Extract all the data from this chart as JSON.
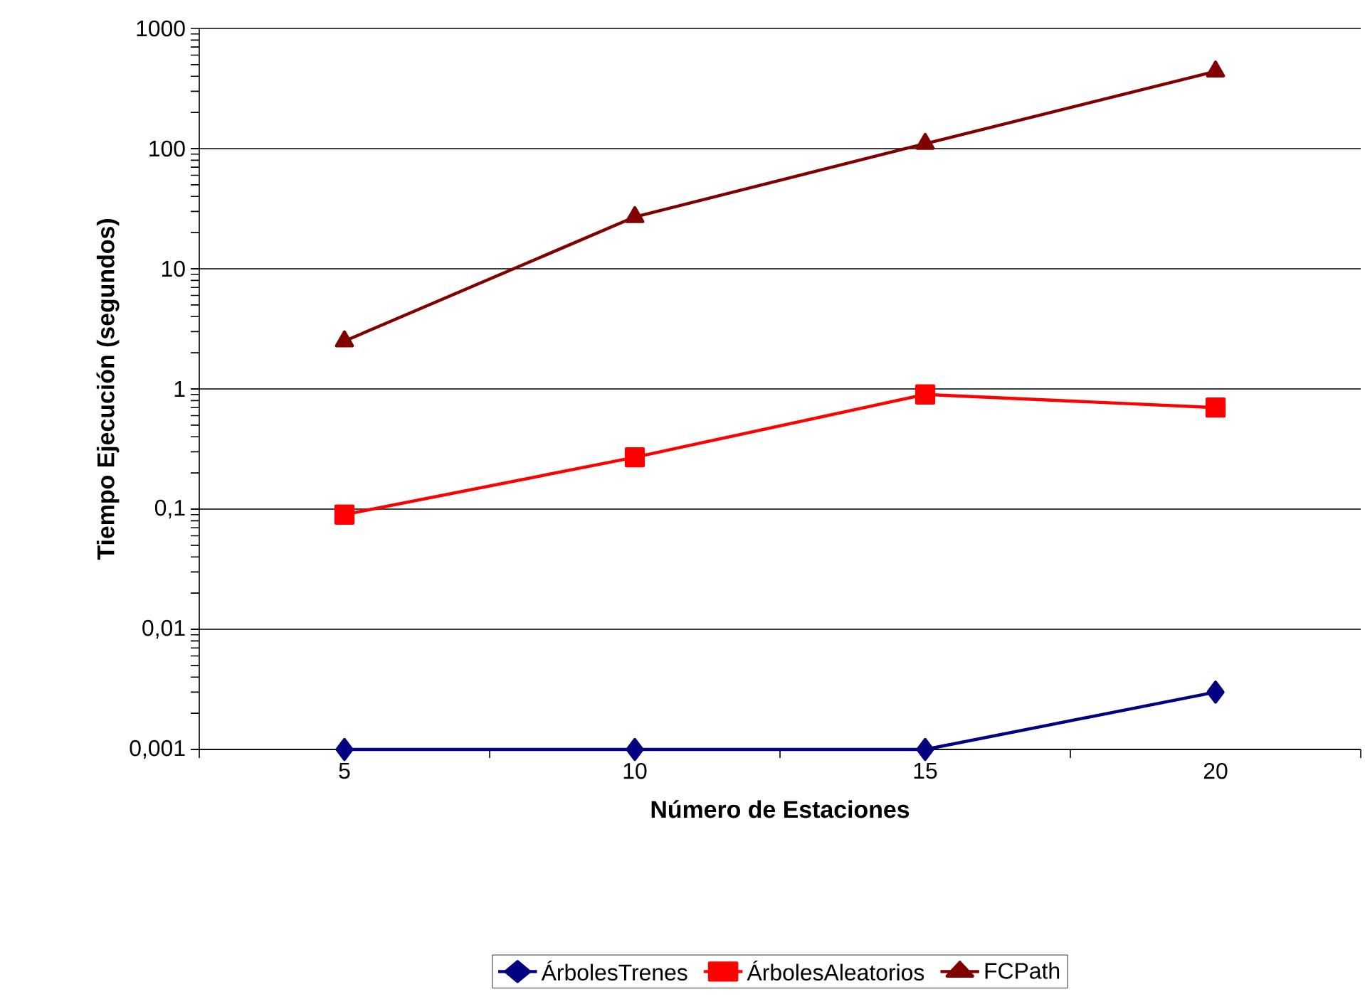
{
  "chart_data": {
    "type": "line",
    "xlabel": "Número de Estaciones",
    "ylabel": "Tiempo Ejecución (segundos)",
    "categories": [
      "5",
      "10",
      "15",
      "20"
    ],
    "series": [
      {
        "name": "ÁrbolesTrenes",
        "color": "#000080",
        "marker": "diamond",
        "values": [
          0.001,
          0.001,
          0.001,
          0.003
        ]
      },
      {
        "name": "ÁrbolesAleatorios",
        "color": "#ff0000",
        "marker": "square",
        "values": [
          0.09,
          0.27,
          0.9,
          0.7
        ]
      },
      {
        "name": "FCPath",
        "color": "#800000",
        "marker": "triangle",
        "values": [
          2.5,
          27,
          110,
          440
        ]
      }
    ],
    "log": "y",
    "ylim": [
      0.001,
      1000
    ],
    "yticks": [
      {
        "value": 0.001,
        "label": "0,001"
      },
      {
        "value": 0.01,
        "label": "0,01"
      },
      {
        "value": 0.1,
        "label": "0,1"
      },
      1,
      10,
      100,
      1000
    ],
    "grid": "y",
    "legend": "bottom",
    "line_style": "solid"
  }
}
